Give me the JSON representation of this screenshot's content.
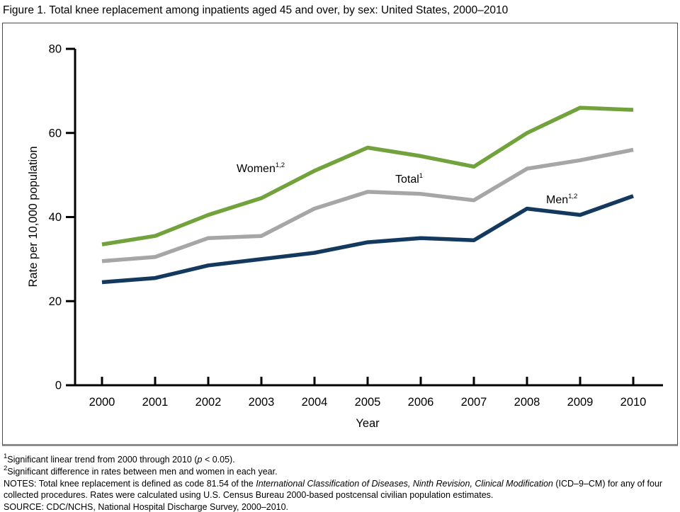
{
  "title": "Figure 1. Total knee replacement among inpatients aged 45 and over, by sex: United States, 2000–2010",
  "chart_data": {
    "type": "line",
    "x": [
      2000,
      2001,
      2002,
      2003,
      2004,
      2005,
      2006,
      2007,
      2008,
      2009,
      2010
    ],
    "series": [
      {
        "name": "Women",
        "sup": "1,2",
        "color": "#72A23C",
        "values": [
          33.5,
          35.5,
          40.5,
          44.5,
          51,
          56.5,
          54.5,
          52,
          60,
          66,
          65.5
        ]
      },
      {
        "name": "Total",
        "sup": "1",
        "color": "#A6A6A6",
        "values": [
          29.5,
          30.5,
          35,
          35.5,
          42,
          46,
          45.5,
          44,
          51.5,
          53.5,
          56
        ]
      },
      {
        "name": "Men",
        "sup": "1,2",
        "color": "#14395E",
        "values": [
          24.5,
          25.5,
          28.5,
          30,
          31.5,
          34,
          35,
          34.5,
          42,
          40.5,
          45
        ]
      }
    ],
    "xlabel": "Year",
    "ylabel": "Rate per 10,000 population",
    "ylim": [
      0,
      80
    ],
    "y_ticks": [
      0,
      20,
      40,
      60,
      80
    ],
    "axis_color": "#000000",
    "legend": "inline-annotations",
    "grid": false
  },
  "footnotes": {
    "fn1": {
      "sup": "1",
      "before_p": "Significant linear trend from 2000 through 2010 (",
      "p_italic": "p",
      "after_p": " < 0.05)."
    },
    "fn2": {
      "sup": "2",
      "text": "Significant difference in rates between men and women in each year."
    },
    "notes": {
      "part1": "NOTES: Total knee replacement is defined as code 81.54 of the ",
      "italic": "International Classification of Diseases, Ninth Revision, Clinical Modification",
      "part2": " (ICD–9–CM) for any of four collected procedures. Rates were calculated using U.S. Census Bureau 2000-based postcensal civilian population estimates."
    },
    "source": "SOURCE: CDC/NCHS, National Hospital Discharge Survey, 2000–2010."
  }
}
